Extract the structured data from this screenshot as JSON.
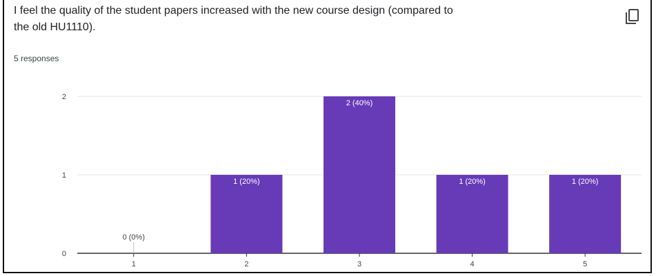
{
  "question": {
    "line1": "I feel the quality of the student papers increased with the new course design (compared to",
    "line2": "the old HU1110)."
  },
  "responses_label": "5 responses",
  "icons": {
    "copy": "copy-icon"
  },
  "colors": {
    "bar": "#673ab7",
    "grid": "#e6e6e6",
    "axis": "#333333"
  },
  "chart_data": {
    "type": "bar",
    "categories": [
      "1",
      "2",
      "3",
      "4",
      "5"
    ],
    "values": [
      0,
      1,
      2,
      1,
      1
    ],
    "data_labels": [
      "0 (0%)",
      "1 (20%)",
      "2 (40%)",
      "1 (20%)",
      "1 (20%)"
    ],
    "y_ticks": [
      "0",
      "1",
      "2"
    ],
    "ylim": [
      0,
      2
    ],
    "grid": true,
    "legend": "none"
  }
}
